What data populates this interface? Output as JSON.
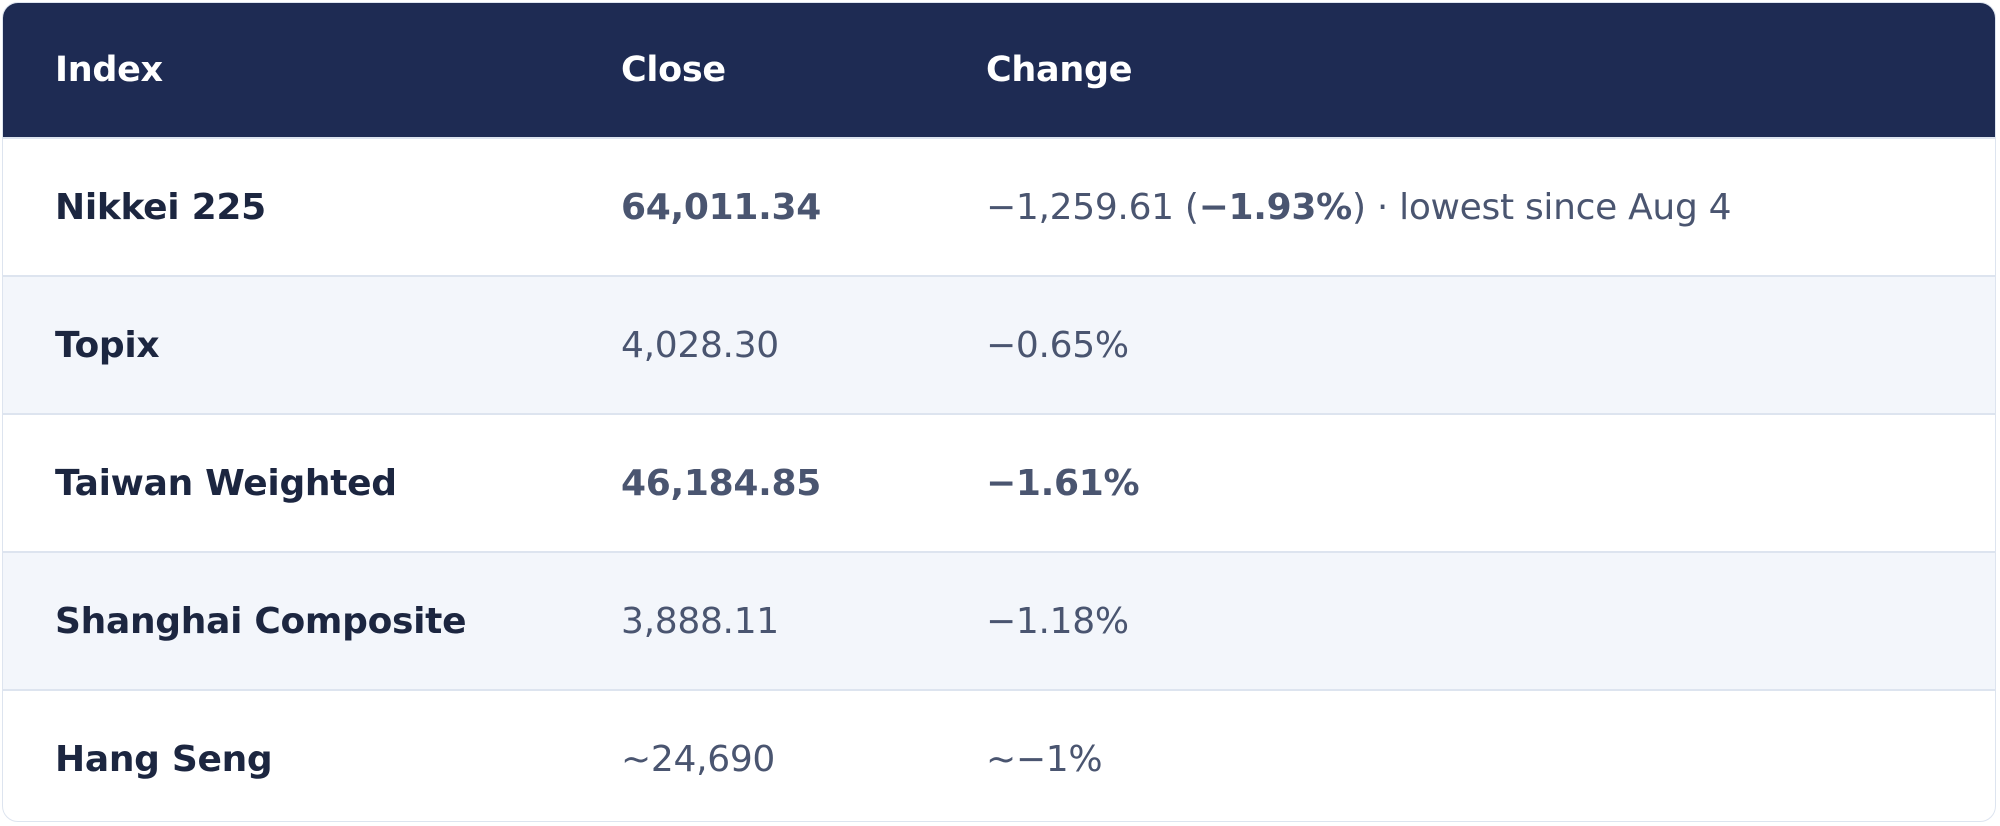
{
  "table": {
    "headers": {
      "index": "Index",
      "close": "Close",
      "change": "Change"
    },
    "rows": [
      {
        "name": "Nikkei 225",
        "close": "64,011.34",
        "change_prefix": "−1,259.61 (",
        "change_strong": "−1.93%",
        "change_suffix": ") · lowest since Aug 4"
      },
      {
        "name": "Topix",
        "close": "4,028.30",
        "change": "−0.65%"
      },
      {
        "name": "Taiwan Weighted",
        "close": "46,184.85",
        "change": "−1.61%"
      },
      {
        "name": "Shanghai Composite",
        "close": "3,888.11",
        "change": "−1.18%"
      },
      {
        "name": "Hang Seng",
        "close": "~24,690",
        "change": "~−1%"
      }
    ]
  },
  "colors": {
    "header_bg": "#1e2b53",
    "alt_row_bg": "#f3f6fb",
    "name_text": "#1c2640",
    "value_text": "#4a5570"
  }
}
